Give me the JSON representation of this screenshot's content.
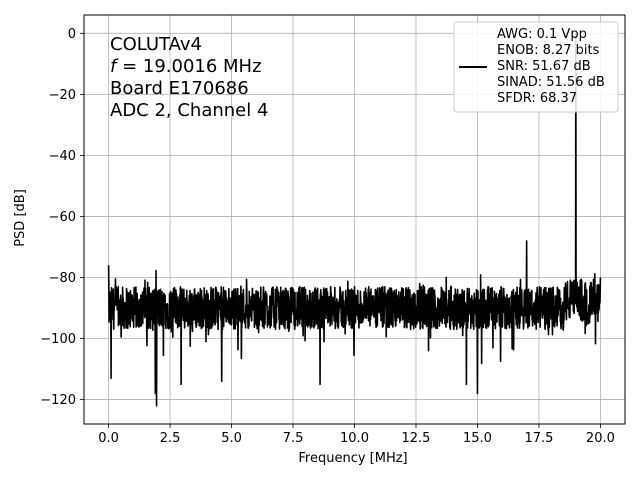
{
  "chart_data": {
    "type": "line",
    "xlabel": "Frequency [MHz]",
    "ylabel": "PSD [dB]",
    "xlim": [
      -1.0,
      21.0
    ],
    "ylim": [
      -128.0,
      6.0
    ],
    "xticks": [
      0.0,
      2.5,
      5.0,
      7.5,
      10.0,
      12.5,
      15.0,
      17.5,
      20.0
    ],
    "xtick_labels": [
      "0.0",
      "2.5",
      "5.0",
      "7.5",
      "10.0",
      "12.5",
      "15.0",
      "17.5",
      "20.0"
    ],
    "yticks": [
      0,
      -20,
      -40,
      -60,
      -80,
      -100,
      -120
    ],
    "ytick_labels": [
      "0",
      "−20",
      "−40",
      "−60",
      "−80",
      "−100",
      "−120"
    ],
    "grid": true,
    "legend_position": "top-right",
    "annotation_lines": [
      "COLUTAv4",
      "f = 19.0016 MHz",
      "Board E170686",
      "ADC 2, Channel 4"
    ],
    "legend_lines": [
      "AWG: 0.1 Vpp",
      "ENOB: 8.27 bits",
      "SNR: 51.67 dB",
      "SINAD: 51.56 dB",
      "SFDR: 68.37"
    ],
    "series": [
      {
        "color": "#000000",
        "noise_floor_db": -90,
        "noise_points": 2000,
        "spurs": [
          {
            "x": 0.0,
            "y": -76
          },
          {
            "x": 0.1,
            "y": -113
          },
          {
            "x": 1.95,
            "y": -122
          },
          {
            "x": 1.9,
            "y": -118
          },
          {
            "x": 2.95,
            "y": -115
          },
          {
            "x": 4.6,
            "y": -114
          },
          {
            "x": 8.6,
            "y": -115
          },
          {
            "x": 14.55,
            "y": -115
          },
          {
            "x": 15.0,
            "y": -118
          },
          {
            "x": 17.0,
            "y": -68
          },
          {
            "x": 19.0,
            "y": 0
          },
          {
            "x": 20.0,
            "y": -80
          }
        ]
      }
    ]
  }
}
